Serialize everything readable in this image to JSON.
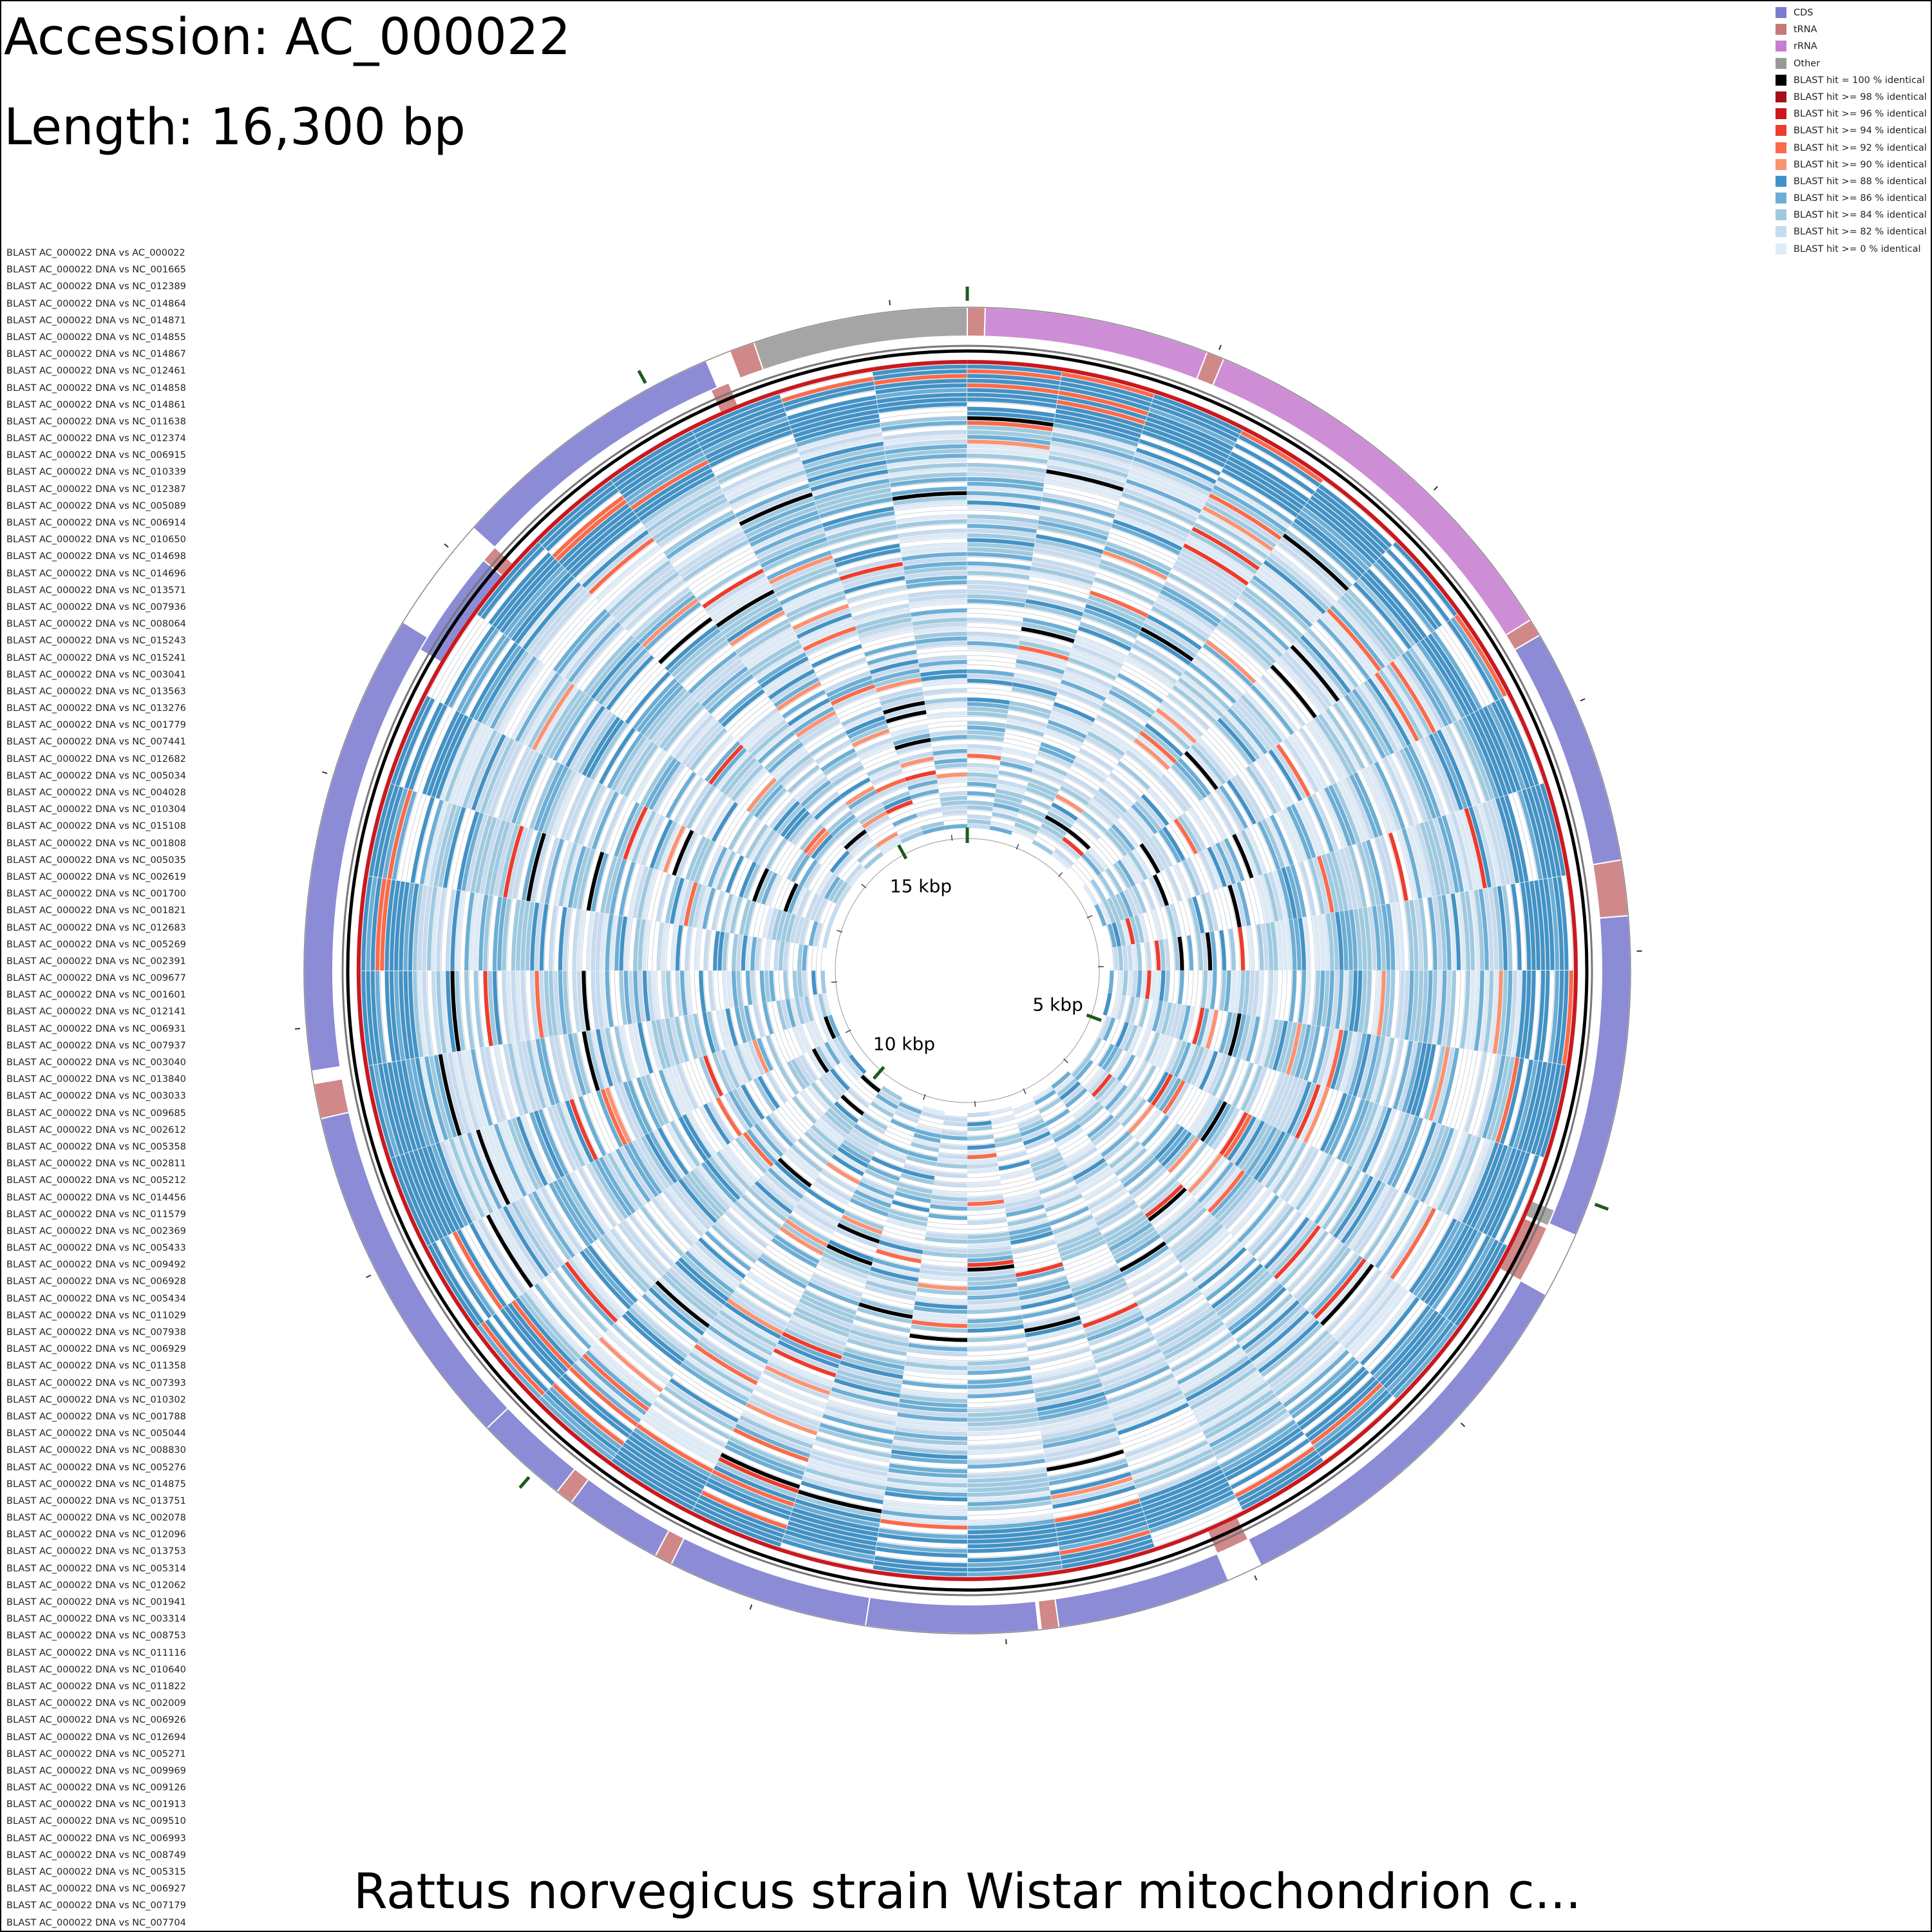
{
  "header": {
    "accession": "Accession: AC_000022",
    "length": "Length: 16,300 bp"
  },
  "footer": {
    "title": "Rattus norvegicus strain Wistar mitochondrion c..."
  },
  "legend": [
    {
      "label": "CDS",
      "color": "#7b7bd0"
    },
    {
      "label": "tRNA",
      "color": "#c97878"
    },
    {
      "label": "rRNA",
      "color": "#c77ed0"
    },
    {
      "label": "Other",
      "color": "#999999"
    },
    {
      "label": "BLAST hit = 100 % identical",
      "color": "#000000"
    },
    {
      "label": "BLAST hit >= 98 % identical",
      "color": "#a50f15"
    },
    {
      "label": "BLAST hit >= 96 % identical",
      "color": "#cb181d"
    },
    {
      "label": "BLAST hit >= 94 % identical",
      "color": "#ef3b2c"
    },
    {
      "label": "BLAST hit >= 92 % identical",
      "color": "#fb6a4a"
    },
    {
      "label": "BLAST hit >= 90 % identical",
      "color": "#fc9272"
    },
    {
      "label": "BLAST hit >= 88 % identical",
      "color": "#4292c6"
    },
    {
      "label": "BLAST hit >= 86 % identical",
      "color": "#6baed6"
    },
    {
      "label": "BLAST hit >= 84 % identical",
      "color": "#9ecae1"
    },
    {
      "label": "BLAST hit >= 82 % identical",
      "color": "#c6dbef"
    },
    {
      "label": "BLAST hit >= 0 % identical",
      "color": "#deebf7"
    }
  ],
  "ruler": {
    "total_bp": 16300,
    "tick_labels": [
      {
        "bp": 5000,
        "label": "5 kbp"
      },
      {
        "bp": 10000,
        "label": "10 kbp"
      },
      {
        "bp": 15000,
        "label": "15 kbp"
      }
    ]
  },
  "tracks": [
    "BLAST AC_000022 DNA vs AC_000022",
    "BLAST AC_000022 DNA vs NC_001665",
    "BLAST AC_000022 DNA vs NC_012389",
    "BLAST AC_000022 DNA vs NC_014864",
    "BLAST AC_000022 DNA vs NC_014871",
    "BLAST AC_000022 DNA vs NC_014855",
    "BLAST AC_000022 DNA vs NC_014867",
    "BLAST AC_000022 DNA vs NC_012461",
    "BLAST AC_000022 DNA vs NC_014858",
    "BLAST AC_000022 DNA vs NC_014861",
    "BLAST AC_000022 DNA vs NC_011638",
    "BLAST AC_000022 DNA vs NC_012374",
    "BLAST AC_000022 DNA vs NC_006915",
    "BLAST AC_000022 DNA vs NC_010339",
    "BLAST AC_000022 DNA vs NC_012387",
    "BLAST AC_000022 DNA vs NC_005089",
    "BLAST AC_000022 DNA vs NC_006914",
    "BLAST AC_000022 DNA vs NC_010650",
    "BLAST AC_000022 DNA vs NC_014698",
    "BLAST AC_000022 DNA vs NC_014696",
    "BLAST AC_000022 DNA vs NC_013571",
    "BLAST AC_000022 DNA vs NC_007936",
    "BLAST AC_000022 DNA vs NC_008064",
    "BLAST AC_000022 DNA vs NC_015243",
    "BLAST AC_000022 DNA vs NC_015241",
    "BLAST AC_000022 DNA vs NC_003041",
    "BLAST AC_000022 DNA vs NC_013563",
    "BLAST AC_000022 DNA vs NC_013276",
    "BLAST AC_000022 DNA vs NC_001779",
    "BLAST AC_000022 DNA vs NC_007441",
    "BLAST AC_000022 DNA vs NC_012682",
    "BLAST AC_000022 DNA vs NC_005034",
    "BLAST AC_000022 DNA vs NC_004028",
    "BLAST AC_000022 DNA vs NC_010304",
    "BLAST AC_000022 DNA vs NC_015108",
    "BLAST AC_000022 DNA vs NC_001808",
    "BLAST AC_000022 DNA vs NC_005035",
    "BLAST AC_000022 DNA vs NC_002619",
    "BLAST AC_000022 DNA vs NC_001700",
    "BLAST AC_000022 DNA vs NC_001821",
    "BLAST AC_000022 DNA vs NC_012683",
    "BLAST AC_000022 DNA vs NC_005269",
    "BLAST AC_000022 DNA vs NC_002391",
    "BLAST AC_000022 DNA vs NC_009677",
    "BLAST AC_000022 DNA vs NC_001601",
    "BLAST AC_000022 DNA vs NC_012141",
    "BLAST AC_000022 DNA vs NC_006931",
    "BLAST AC_000022 DNA vs NC_007937",
    "BLAST AC_000022 DNA vs NC_003040",
    "BLAST AC_000022 DNA vs NC_013840",
    "BLAST AC_000022 DNA vs NC_003033",
    "BLAST AC_000022 DNA vs NC_009685",
    "BLAST AC_000022 DNA vs NC_002612",
    "BLAST AC_000022 DNA vs NC_005358",
    "BLAST AC_000022 DNA vs NC_002811",
    "BLAST AC_000022 DNA vs NC_005212",
    "BLAST AC_000022 DNA vs NC_014456",
    "BLAST AC_000022 DNA vs NC_011579",
    "BLAST AC_000022 DNA vs NC_002369",
    "BLAST AC_000022 DNA vs NC_005433",
    "BLAST AC_000022 DNA vs NC_009492",
    "BLAST AC_000022 DNA vs NC_006928",
    "BLAST AC_000022 DNA vs NC_005434",
    "BLAST AC_000022 DNA vs NC_011029",
    "BLAST AC_000022 DNA vs NC_007938",
    "BLAST AC_000022 DNA vs NC_006929",
    "BLAST AC_000022 DNA vs NC_011358",
    "BLAST AC_000022 DNA vs NC_007393",
    "BLAST AC_000022 DNA vs NC_010302",
    "BLAST AC_000022 DNA vs NC_001788",
    "BLAST AC_000022 DNA vs NC_005044",
    "BLAST AC_000022 DNA vs NC_008830",
    "BLAST AC_000022 DNA vs NC_005276",
    "BLAST AC_000022 DNA vs NC_014875",
    "BLAST AC_000022 DNA vs NC_013751",
    "BLAST AC_000022 DNA vs NC_002078",
    "BLAST AC_000022 DNA vs NC_012096",
    "BLAST AC_000022 DNA vs NC_013753",
    "BLAST AC_000022 DNA vs NC_005314",
    "BLAST AC_000022 DNA vs NC_012062",
    "BLAST AC_000022 DNA vs NC_001941",
    "BLAST AC_000022 DNA vs NC_003314",
    "BLAST AC_000022 DNA vs NC_008753",
    "BLAST AC_000022 DNA vs NC_011116",
    "BLAST AC_000022 DNA vs NC_010640",
    "BLAST AC_000022 DNA vs NC_011822",
    "BLAST AC_000022 DNA vs NC_002009",
    "BLAST AC_000022 DNA vs NC_006926",
    "BLAST AC_000022 DNA vs NC_012694",
    "BLAST AC_000022 DNA vs NC_005271",
    "BLAST AC_000022 DNA vs NC_009969",
    "BLAST AC_000022 DNA vs NC_009126",
    "BLAST AC_000022 DNA vs NC_001913",
    "BLAST AC_000022 DNA vs NC_009510",
    "BLAST AC_000022 DNA vs NC_006993",
    "BLAST AC_000022 DNA vs NC_008749",
    "BLAST AC_000022 DNA vs NC_005315",
    "BLAST AC_000022 DNA vs NC_006927",
    "BLAST AC_000022 DNA vs NC_007179",
    "BLAST AC_000022 DNA vs NC_007704"
  ],
  "features": [
    {
      "type": "Other",
      "start": 15450,
      "end": 16300,
      "strand": "+"
    },
    {
      "type": "tRNA",
      "start": 15350,
      "end": 15450,
      "strand": "+"
    },
    {
      "type": "tRNA",
      "start": 15220,
      "end": 15300,
      "strand": "-"
    },
    {
      "type": "CDS",
      "start": 14120,
      "end": 15250,
      "strand": "+"
    },
    {
      "type": "tRNA",
      "start": 14050,
      "end": 14120,
      "strand": "-"
    },
    {
      "type": "CDS",
      "start": 13600,
      "end": 14050,
      "strand": "-"
    },
    {
      "type": "CDS",
      "start": 11830,
      "end": 13660,
      "strand": "+"
    },
    {
      "type": "tRNA",
      "start": 11640,
      "end": 11780,
      "strand": "+"
    },
    {
      "type": "CDS",
      "start": 10250,
      "end": 11640,
      "strand": "+"
    },
    {
      "type": "CDS",
      "start": 9880,
      "end": 10250,
      "strand": "+"
    },
    {
      "type": "tRNA",
      "start": 9810,
      "end": 9880,
      "strand": "+"
    },
    {
      "type": "CDS",
      "start": 9420,
      "end": 9810,
      "strand": "+"
    },
    {
      "type": "tRNA",
      "start": 9350,
      "end": 9420,
      "strand": "+"
    },
    {
      "type": "CDS",
      "start": 8550,
      "end": 9350,
      "strand": "+"
    },
    {
      "type": "CDS",
      "start": 7870,
      "end": 8550,
      "strand": "+"
    },
    {
      "type": "tRNA",
      "start": 7790,
      "end": 7860,
      "strand": "+"
    },
    {
      "type": "CDS",
      "start": 7100,
      "end": 7790,
      "strand": "+"
    },
    {
      "type": "tRNA",
      "start": 6960,
      "end": 7100,
      "strand": "-"
    },
    {
      "type": "CDS",
      "start": 5400,
      "end": 6960,
      "strand": "+"
    },
    {
      "type": "tRNA",
      "start": 5160,
      "end": 5400,
      "strand": "-"
    },
    {
      "type": "Other",
      "start": 5080,
      "end": 5150,
      "strand": "-"
    },
    {
      "type": "CDS",
      "start": 3860,
      "end": 5140,
      "strand": "+"
    },
    {
      "type": "tRNA",
      "start": 3640,
      "end": 3860,
      "strand": "+"
    },
    {
      "type": "CDS",
      "start": 2700,
      "end": 3640,
      "strand": "+"
    },
    {
      "type": "tRNA",
      "start": 2630,
      "end": 2700,
      "strand": "+"
    },
    {
      "type": "rRNA",
      "start": 1030,
      "end": 2630,
      "strand": "+"
    },
    {
      "type": "tRNA",
      "start": 960,
      "end": 1030,
      "strand": "+"
    },
    {
      "type": "rRNA",
      "start": 70,
      "end": 960,
      "strand": "+"
    },
    {
      "type": "tRNA",
      "start": 0,
      "end": 70,
      "strand": "+"
    }
  ]
}
